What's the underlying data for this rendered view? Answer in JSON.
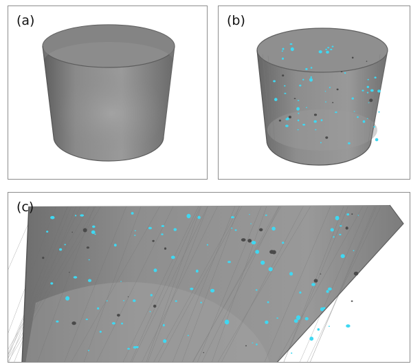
{
  "figure": {
    "panels": [
      {
        "id": "a",
        "label": "(a)",
        "content": "translucent-cylinder"
      },
      {
        "id": "b",
        "label": "(b)",
        "content": "cylinder-with-inclusions"
      },
      {
        "id": "c",
        "label": "(c)",
        "content": "zoomed-cylinder-wall-with-inclusions"
      }
    ],
    "colors": {
      "cylinder_gray": "#8e8e8e",
      "cylinder_dark": "#6a6a6a",
      "inclusion_cyan": "#3fd8f2",
      "inclusion_dark": "#4a4a4a",
      "frame": "#8c8c8c"
    }
  }
}
